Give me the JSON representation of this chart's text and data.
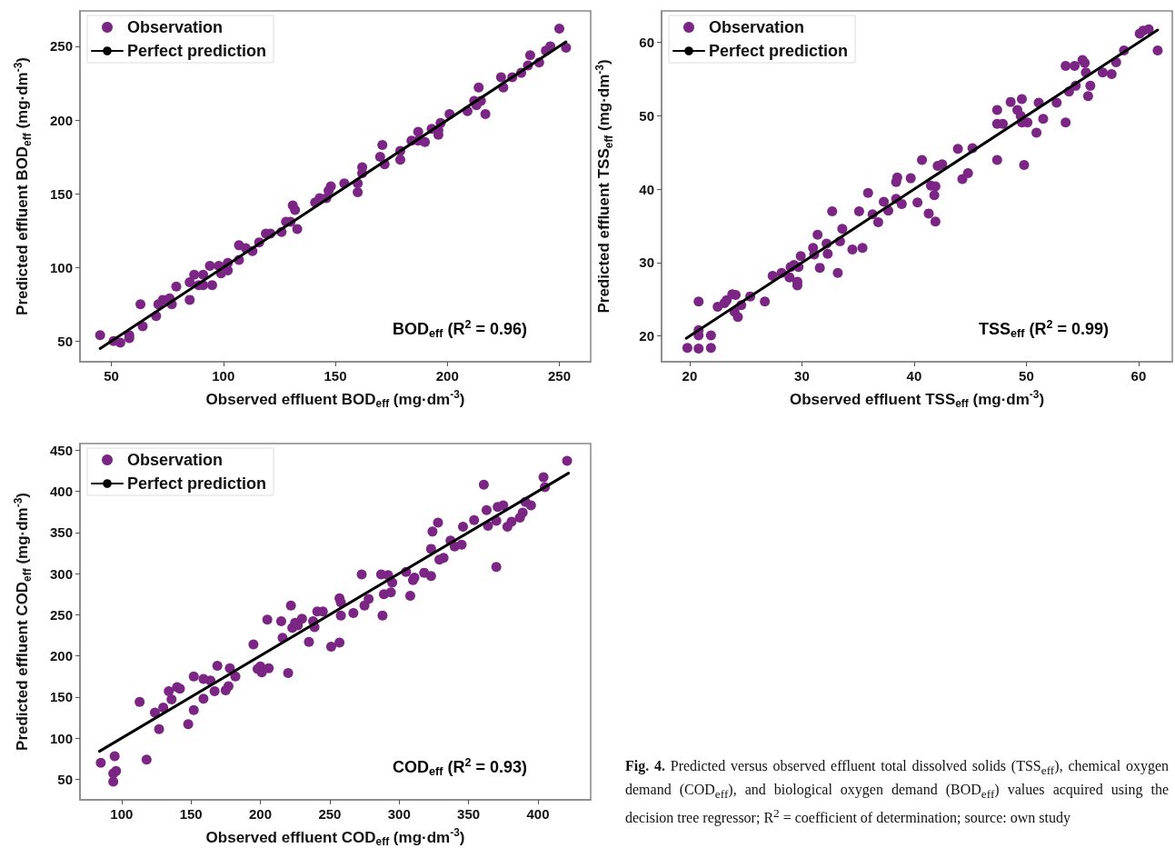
{
  "chart_data": [
    {
      "type": "scatter",
      "xlabel": "Observed effluent BOD$_{eff}$ (mg·dm$^{-3}$)",
      "ylabel": "Predicted effluent BOD$_{eff}$ (mg·dm$^{-3}$)",
      "annotations": [
        "BOD$_{eff}$ (R$^{2}$ = 0.96)"
      ],
      "xlim": [
        36,
        264
      ],
      "xticks": [
        50,
        100,
        150,
        200,
        250
      ],
      "ylim": [
        36,
        274
      ],
      "yticks": [
        50,
        100,
        150,
        200,
        250
      ],
      "grid": false,
      "legend": "top left",
      "series": [
        {
          "name": "Observation",
          "type": "scatter",
          "marker": "circle",
          "color": "#7b2684",
          "x": [
            45,
            51,
            54,
            58,
            58,
            63,
            64,
            70,
            71,
            73,
            76,
            77,
            79,
            85,
            85,
            87,
            89,
            91,
            91,
            94,
            95,
            98,
            99,
            102,
            102,
            107,
            107,
            110,
            113,
            116,
            119,
            121,
            126,
            128,
            130,
            131,
            132,
            133,
            141,
            143,
            146,
            147,
            148,
            154,
            160,
            160,
            162,
            162,
            170,
            171,
            172,
            179,
            179,
            184,
            187,
            187,
            190,
            193,
            196,
            196,
            197,
            201,
            209,
            212,
            213,
            214,
            215,
            217,
            224,
            225,
            229,
            233,
            236,
            237,
            241,
            244,
            246,
            250,
            253
          ],
          "values": [
            54,
            50,
            49,
            52,
            54,
            75,
            60,
            67,
            75,
            78,
            79,
            75,
            87,
            90,
            78,
            95,
            88,
            95,
            88,
            101,
            88,
            101,
            96,
            103,
            98,
            115,
            105,
            113,
            111,
            117,
            123,
            123,
            124,
            131,
            131,
            142,
            139,
            126,
            144,
            147,
            147,
            152,
            155,
            157,
            151,
            157,
            164,
            168,
            175,
            183,
            170,
            179,
            173,
            186,
            192,
            186,
            185,
            194,
            190,
            193,
            198,
            204,
            206,
            213,
            210,
            222,
            213,
            204,
            229,
            222,
            229,
            232,
            237,
            244,
            239,
            247,
            250,
            262,
            249
          ]
        },
        {
          "name": "Perfect prediction",
          "type": "line",
          "marker": "none",
          "line_style": "solid",
          "color": "#000000",
          "x": [
            45,
            253
          ],
          "values": [
            45,
            253
          ]
        }
      ]
    },
    {
      "type": "scatter",
      "xlabel": "Observed effluent TSS$_{eff}$ (mg·dm$^{-3}$)",
      "ylabel": "Predicted effluent TSS$_{eff}$ (mg·dm$^{-3}$)",
      "annotations": [
        "TSS$_{eff}$ (R$^{2}$ = 0.99)"
      ],
      "xlim": [
        17.5,
        63
      ],
      "xticks": [
        20,
        30,
        40,
        50,
        60
      ],
      "ylim": [
        16.5,
        64.3
      ],
      "yticks": [
        20,
        30,
        40,
        50,
        60
      ],
      "grid": false,
      "legend": "top left",
      "series": [
        {
          "name": "Observation",
          "type": "scatter",
          "marker": "circle",
          "color": "#7b2684",
          "x": [
            19.8,
            20.8,
            21.9,
            20.8,
            21.9,
            20.8,
            20.8,
            22.5,
            23.1,
            23.3,
            23.8,
            24.1,
            24.0,
            24.3,
            24.6,
            25.4,
            26.7,
            27.4,
            28.2,
            28.9,
            29.0,
            29.3,
            29.6,
            29.6,
            29.7,
            29.9,
            31.0,
            31.1,
            31.4,
            31.6,
            32.2,
            32.3,
            32.7,
            33.2,
            33.4,
            33.6,
            34.5,
            35.1,
            35.4,
            35.9,
            36.3,
            36.8,
            37.3,
            37.7,
            38.4,
            38.4,
            38.5,
            38.9,
            39.7,
            40.3,
            40.7,
            41.3,
            41.5,
            41.8,
            41.9,
            41.9,
            42.1,
            42.5,
            43.9,
            44.3,
            44.8,
            45.2,
            47.4,
            47.4,
            47.4,
            47.9,
            48.6,
            49.2,
            49.5,
            49.6,
            49.6,
            49.8,
            50.1,
            50.9,
            51.1,
            51.5,
            52.7,
            53.5,
            53.5,
            53.8,
            54.3,
            54.4,
            55.0,
            55.2,
            55.3,
            55.5,
            55.7,
            56.8,
            57.6,
            58.0,
            58.7,
            60.1,
            60.4,
            60.9,
            61.7
          ],
          "values": [
            18.4,
            18.3,
            18.4,
            20.1,
            20.1,
            20.8,
            24.7,
            24.0,
            24.5,
            24.9,
            25.7,
            25.6,
            23.3,
            22.6,
            24.2,
            25.4,
            24.7,
            28.2,
            28.6,
            28.0,
            29.4,
            29.7,
            27.4,
            26.9,
            29.4,
            30.9,
            32.0,
            31.1,
            33.8,
            29.3,
            32.6,
            31.2,
            37.0,
            28.6,
            32.9,
            34.6,
            31.8,
            37.0,
            32.0,
            39.5,
            36.6,
            35.5,
            38.3,
            37.1,
            38.7,
            41.0,
            41.6,
            38.0,
            41.5,
            38.2,
            44.0,
            36.7,
            40.5,
            39.2,
            35.6,
            40.4,
            43.2,
            43.4,
            45.5,
            41.4,
            42.2,
            45.6,
            50.8,
            48.9,
            44.0,
            48.9,
            51.9,
            50.8,
            50.0,
            52.3,
            49.1,
            43.3,
            49.1,
            47.7,
            51.8,
            49.6,
            51.8,
            56.8,
            49.1,
            53.3,
            56.8,
            54.1,
            57.6,
            57.2,
            55.9,
            52.7,
            54.1,
            55.9,
            55.7,
            57.3,
            58.9,
            61.2,
            61.6,
            61.8,
            58.9
          ]
        },
        {
          "name": "Perfect prediction",
          "type": "line",
          "marker": "none",
          "line_style": "solid",
          "color": "#000000",
          "x": [
            19.7,
            61.7
          ],
          "values": [
            19.7,
            61.7
          ]
        }
      ]
    },
    {
      "type": "scatter",
      "xlabel": "Observed effluent COD$_{eff}$ (mg·dm$^{-3}$)",
      "ylabel": "Predicted effluent COD$_{eff}$ (mg·dm$^{-3}$)",
      "annotations": [
        "COD$_{eff}$ (R$^{2}$ = 0.93)"
      ],
      "xlim": [
        70,
        438
      ],
      "xticks": [
        100,
        150,
        200,
        250,
        300,
        350,
        400
      ],
      "ylim": [
        25,
        458
      ],
      "yticks": [
        50,
        100,
        150,
        200,
        250,
        300,
        350,
        400,
        450
      ],
      "grid": false,
      "legend": "top left",
      "series": [
        {
          "name": "Observation",
          "type": "scatter",
          "marker": "circle",
          "color": "#7b2684",
          "x": [
            85,
            94,
            94,
            95,
            96,
            113,
            118,
            124,
            127,
            130,
            134,
            136,
            140,
            142,
            148,
            152,
            152,
            159,
            159,
            164,
            167,
            169,
            175,
            177,
            178,
            182,
            195,
            198,
            200,
            201,
            205,
            206,
            215,
            216,
            220,
            222,
            223,
            225,
            227,
            230,
            235,
            238,
            239,
            241,
            245,
            251,
            257,
            257,
            258,
            258,
            267,
            273,
            275,
            278,
            287,
            288,
            289,
            292,
            294,
            295,
            305,
            308,
            310,
            311,
            318,
            323,
            323,
            324,
            329,
            328,
            332,
            337,
            340,
            345,
            346,
            354,
            361,
            363,
            364,
            370,
            370,
            371,
            375,
            378,
            381,
            387,
            389,
            391,
            395,
            404,
            405,
            421
          ],
          "values": [
            70,
            47,
            57,
            78,
            60,
            144,
            74,
            131,
            111,
            137,
            157,
            147,
            162,
            160,
            117,
            134,
            175,
            172,
            148,
            170,
            157,
            188,
            158,
            163,
            185,
            175,
            214,
            184,
            187,
            180,
            244,
            185,
            242,
            222,
            179,
            261,
            234,
            240,
            237,
            245,
            217,
            242,
            235,
            254,
            254,
            211,
            216,
            270,
            265,
            249,
            252,
            299,
            261,
            269,
            299,
            249,
            275,
            298,
            277,
            289,
            302,
            273,
            292,
            295,
            301,
            297,
            330,
            351,
            317,
            362,
            319,
            340,
            333,
            335,
            357,
            365,
            408,
            377,
            358,
            308,
            364,
            381,
            383,
            357,
            363,
            368,
            374,
            387,
            383,
            417,
            405,
            437
          ]
        },
        {
          "name": "Perfect prediction",
          "type": "line",
          "marker": "none",
          "line_style": "solid",
          "color": "#000000",
          "x": [
            84,
            422
          ],
          "values": [
            84,
            422
          ]
        }
      ]
    },
    {
      "type": "other",
      "annotations": [
        "Fig. 4. Predicted versus observed effluent total dissolved solids (TSS$_{eff}$), chemical oxygen demand (COD$_{eff}$), and biological oxygen demand (BOD$_{eff}$) values acquired using the decision tree regressor; R$^{2}$ = coefficient of determination; source: own study"
      ]
    }
  ]
}
